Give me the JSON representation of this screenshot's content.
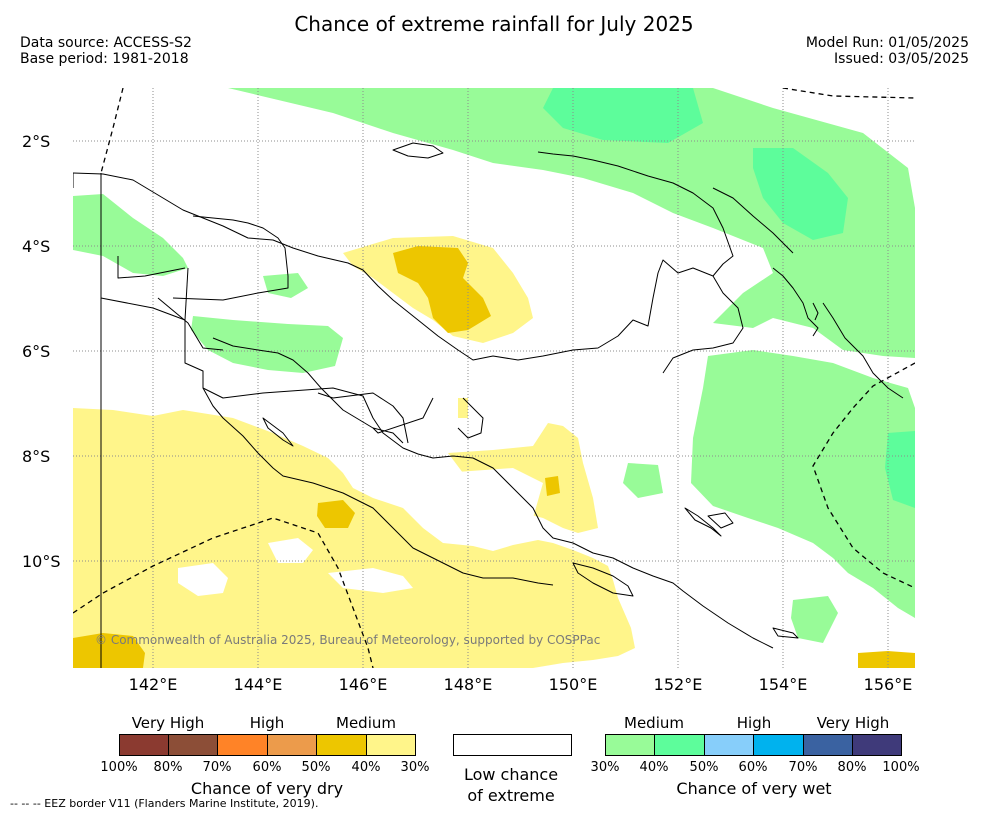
{
  "header": {
    "title": "Chance of extreme rainfall for July 2025",
    "data_source": "Data source: ACCESS-S2",
    "base_period": "Base period: 1981-2018",
    "model_run": "Model Run: 01/05/2025",
    "issued": "Issued: 03/05/2025"
  },
  "map": {
    "lat_labels": [
      "2°S",
      "4°S",
      "6°S",
      "8°S",
      "10°S"
    ],
    "lon_labels": [
      "142°E",
      "144°E",
      "146°E",
      "148°E",
      "150°E",
      "152°E",
      "154°E",
      "156°E"
    ],
    "copyright": "© Commonwealth of Australia 2025, Bureau of Meteorology, supported by COSPPac",
    "colors": {
      "dry_medium_low": "#fff58a",
      "dry_medium_high": "#edc600",
      "wet_medium_low": "#98fb98",
      "wet_medium_high": "#5dfd9b",
      "coastline": "#000000",
      "grid": "#8c8c8c"
    }
  },
  "legend": {
    "dry": {
      "categories": [
        "Very High",
        "High",
        "Medium"
      ],
      "percent_labels": [
        "100%",
        "80%",
        "70%",
        "60%",
        "50%",
        "40%",
        "30%"
      ],
      "colors": [
        "#8b3a30",
        "#8c4e37",
        "#ff8327",
        "#ec9b4b",
        "#edc600",
        "#fff58a"
      ],
      "caption": "Chance of very dry"
    },
    "neutral": {
      "color": "#ffffff",
      "caption_line1": "Low chance",
      "caption_line2": "of extreme"
    },
    "wet": {
      "categories": [
        "Medium",
        "High",
        "Very High"
      ],
      "percent_labels": [
        "30%",
        "40%",
        "50%",
        "60%",
        "70%",
        "80%",
        "100%"
      ],
      "colors": [
        "#98fb98",
        "#5dfd9b",
        "#87cefa",
        "#00b2ee",
        "#3a62a1",
        "#3f3a7a"
      ],
      "caption": "Chance of very wet"
    }
  },
  "footnote": "-- -- -- EEZ border V11 (Flanders Marine Institute, 2019)."
}
